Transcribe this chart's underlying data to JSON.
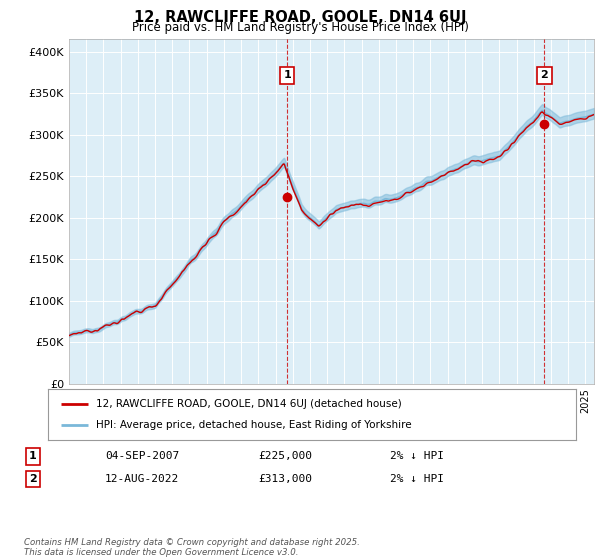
{
  "title": "12, RAWCLIFFE ROAD, GOOLE, DN14 6UJ",
  "subtitle": "Price paid vs. HM Land Registry's House Price Index (HPI)",
  "ylabel_ticks": [
    "£0",
    "£50K",
    "£100K",
    "£150K",
    "£200K",
    "£250K",
    "£300K",
    "£350K",
    "£400K"
  ],
  "ytick_values": [
    0,
    50000,
    100000,
    150000,
    200000,
    250000,
    300000,
    350000,
    400000
  ],
  "ylim": [
    0,
    415000
  ],
  "xlim_start": 1995.0,
  "xlim_end": 2025.5,
  "hpi_line_color": "#7ab8d9",
  "hpi_band_color": "#d6eaf5",
  "price_line_color": "#cc0000",
  "sale1_x": 2007.67,
  "sale1_y": 225000,
  "sale1_label": "1",
  "sale2_x": 2022.62,
  "sale2_y": 313000,
  "sale2_label": "2",
  "marker_vline_color": "#cc0000",
  "marker_box_color": "#cc0000",
  "legend_label1": "12, RAWCLIFFE ROAD, GOOLE, DN14 6UJ (detached house)",
  "legend_label2": "HPI: Average price, detached house, East Riding of Yorkshire",
  "annotation1_date": "04-SEP-2007",
  "annotation1_price": "£225,000",
  "annotation1_hpi": "2% ↓ HPI",
  "annotation2_date": "12-AUG-2022",
  "annotation2_price": "£313,000",
  "annotation2_hpi": "2% ↓ HPI",
  "footer": "Contains HM Land Registry data © Crown copyright and database right 2025.\nThis data is licensed under the Open Government Licence v3.0.",
  "background_color": "#ffffff",
  "plot_bg_color": "#ddeef7",
  "grid_color": "#ffffff"
}
